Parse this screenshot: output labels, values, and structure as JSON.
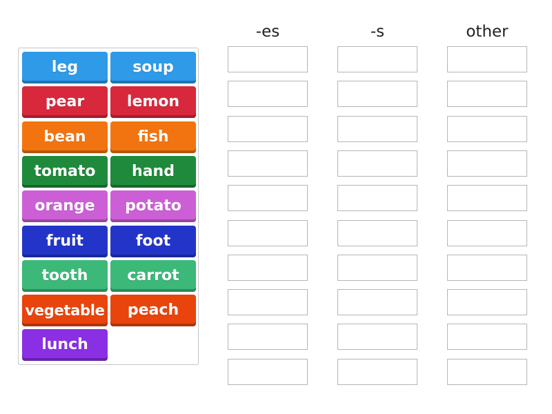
{
  "columns": [
    {
      "label": "-es"
    },
    {
      "label": "-s"
    },
    {
      "label": "other"
    }
  ],
  "slots_per_column": 10,
  "tiles": [
    {
      "label": "leg",
      "color": "#2e9ae8"
    },
    {
      "label": "soup",
      "color": "#2e9ae8"
    },
    {
      "label": "pear",
      "color": "#d7283c"
    },
    {
      "label": "lemon",
      "color": "#d7283c"
    },
    {
      "label": "bean",
      "color": "#f27410"
    },
    {
      "label": "fish",
      "color": "#f27410"
    },
    {
      "label": "tomato",
      "color": "#1f8a3c"
    },
    {
      "label": "hand",
      "color": "#1f8a3c"
    },
    {
      "label": "orange",
      "color": "#cc5fd6"
    },
    {
      "label": "potato",
      "color": "#cc5fd6"
    },
    {
      "label": "fruit",
      "color": "#2335c9"
    },
    {
      "label": "foot",
      "color": "#2335c9"
    },
    {
      "label": "tooth",
      "color": "#3cb879"
    },
    {
      "label": "carrot",
      "color": "#3cb879"
    },
    {
      "label": "vegetable",
      "color": "#e8440c"
    },
    {
      "label": "peach",
      "color": "#e8440c"
    },
    {
      "label": "lunch",
      "color": "#8a2fe3"
    }
  ]
}
